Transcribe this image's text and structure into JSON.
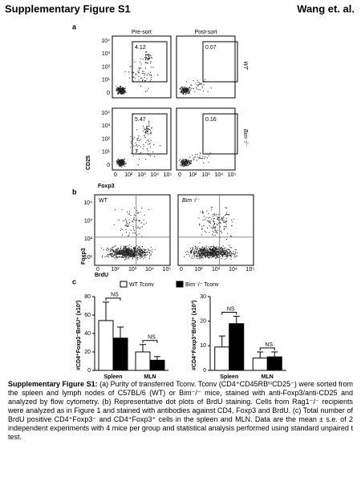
{
  "header": {
    "title": "Supplementary Figure S1",
    "author": "Wang et. al."
  },
  "panel_a": {
    "label": "a",
    "columns": [
      "Pre-sort",
      "Post-sort"
    ],
    "rows": [
      "WT",
      "Bim⁻/⁻"
    ],
    "gates": [
      [
        "4.12",
        "0.07"
      ],
      [
        "5.47",
        "0.16"
      ]
    ],
    "y_axis": "CD25",
    "x_axis": "Foxp3",
    "yticks": [
      "10⁴",
      "10³",
      "10²",
      "10¹",
      "0"
    ],
    "xticks": [
      "0",
      "10²",
      "10³",
      "10⁴",
      "10⁵"
    ]
  },
  "panel_b": {
    "label": "b",
    "plots": [
      "WT",
      "Bim⁻/⁻"
    ],
    "y_axis": "Foxp3",
    "x_axis": "BrdU",
    "yticks": [
      "10⁴",
      "10³",
      "10²",
      "10¹"
    ],
    "xticks": [
      "0",
      "10²",
      "10³",
      "10⁴",
      "10⁵"
    ]
  },
  "panel_c": {
    "label": "c"
  },
  "chart_data": [
    {
      "type": "bar",
      "ylabel": "#CD4⁺Foxp3⁻BrdU⁺ (x10³)",
      "categories": [
        "Spleen",
        "MLN"
      ],
      "series": [
        {
          "name": "WT Tconv",
          "color": "#ffffff",
          "values": [
            54,
            20
          ],
          "errors": [
            20,
            8
          ]
        },
        {
          "name": "Bim⁻/⁻ Tconv",
          "color": "#000000",
          "values": [
            35,
            11
          ],
          "errors": [
            12,
            4
          ]
        }
      ],
      "ylim": [
        0,
        80
      ],
      "yticks": [
        0,
        20,
        40,
        60,
        80
      ],
      "annotations": [
        "NS",
        "NS"
      ]
    },
    {
      "type": "bar",
      "ylabel": "#CD4⁺Foxp3⁺BrdU⁺ (x10³)",
      "categories": [
        "Spleen",
        "MLN"
      ],
      "series": [
        {
          "name": "WT Tconv",
          "color": "#ffffff",
          "values": [
            9.5,
            5
          ],
          "errors": [
            4.5,
            2.5
          ]
        },
        {
          "name": "Bim⁻/⁻ Tconv",
          "color": "#000000",
          "values": [
            19,
            5.5
          ],
          "errors": [
            3,
            2
          ]
        }
      ],
      "ylim": [
        0,
        30
      ],
      "yticks": [
        0,
        10,
        20,
        30
      ],
      "annotations": [
        "NS",
        "NS"
      ]
    }
  ],
  "caption": {
    "title": "Supplementary Figure S1:",
    "text": " (a) Purity of transferred Tconv. Tconv (CD4⁺CD45RBʰⁱCD25⁻) were sorted from the spleen and lymph nodes of C57BL/6 (WT) or Bim⁻/⁻ mice, stained with anti-Foxp3/anti-CD25 and analyzed by flow cytometry. (b) Representative dot plots of BrdU staining. Cells from Rag1⁻/⁻ recipients were analyzed as in Figure 1 and stained with antibodies against CD4, Foxp3 and BrdU. (c) Total number of BrdU positive CD4⁺Foxp3⁻ and CD4⁺Foxp3⁺ cells in the spleen and MLN. Data are the mean ± s.e. of 2 independent experiments with 4 mice per group and statistical analysis performed using standard unpaired t test."
  }
}
